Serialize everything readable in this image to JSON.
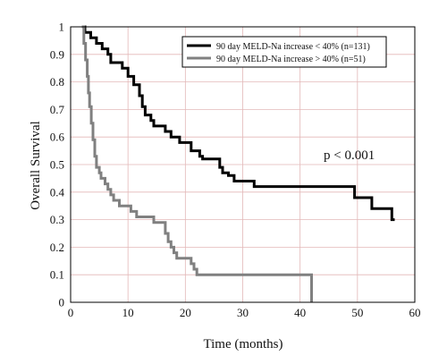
{
  "chart_data": {
    "type": "line",
    "xlabel": "Time (months)",
    "ylabel": "Overall Survival",
    "xlim": [
      0,
      60
    ],
    "ylim": [
      0,
      1
    ],
    "xticks": [
      "0",
      "10",
      "20",
      "30",
      "40",
      "50",
      "60"
    ],
    "yticks": [
      "0",
      "0.1",
      "0.2",
      "0.3",
      "0.4",
      "0.5",
      "0.6",
      "0.7",
      "0.8",
      "0.9",
      "1"
    ],
    "grid": true,
    "legend_position": "top-right",
    "annotation": "p < 0.001",
    "series": [
      {
        "name": "90 day MELD-Na increase < 40% (n=131)",
        "color": "#000000",
        "points": [
          [
            2,
            1.0
          ],
          [
            2.5,
            0.98
          ],
          [
            3.5,
            0.96
          ],
          [
            4.5,
            0.94
          ],
          [
            5.5,
            0.92
          ],
          [
            6.5,
            0.9
          ],
          [
            7,
            0.87
          ],
          [
            9,
            0.85
          ],
          [
            10,
            0.82
          ],
          [
            11,
            0.79
          ],
          [
            12,
            0.75
          ],
          [
            12.5,
            0.71
          ],
          [
            13,
            0.68
          ],
          [
            14,
            0.66
          ],
          [
            14.5,
            0.64
          ],
          [
            16.5,
            0.62
          ],
          [
            17.5,
            0.6
          ],
          [
            19,
            0.58
          ],
          [
            21,
            0.55
          ],
          [
            22.5,
            0.53
          ],
          [
            23,
            0.52
          ],
          [
            26,
            0.49
          ],
          [
            26.5,
            0.47
          ],
          [
            27.5,
            0.46
          ],
          [
            28.5,
            0.44
          ],
          [
            32,
            0.42
          ],
          [
            49.5,
            0.38
          ],
          [
            52.5,
            0.34
          ],
          [
            56,
            0.3
          ]
        ],
        "end_x": 56.5
      },
      {
        "name": "90 day MELD-Na increase > 40% (n=51)",
        "color": "#808080",
        "points": [
          [
            2,
            1.0
          ],
          [
            2.3,
            0.94
          ],
          [
            2.6,
            0.88
          ],
          [
            2.9,
            0.82
          ],
          [
            3.1,
            0.76
          ],
          [
            3.3,
            0.71
          ],
          [
            3.6,
            0.65
          ],
          [
            3.9,
            0.59
          ],
          [
            4.2,
            0.53
          ],
          [
            4.5,
            0.49
          ],
          [
            5,
            0.47
          ],
          [
            5.3,
            0.45
          ],
          [
            6,
            0.43
          ],
          [
            6.5,
            0.41
          ],
          [
            7,
            0.39
          ],
          [
            7.5,
            0.37
          ],
          [
            8.5,
            0.35
          ],
          [
            10.5,
            0.33
          ],
          [
            11.5,
            0.31
          ],
          [
            14.5,
            0.29
          ],
          [
            16.5,
            0.25
          ],
          [
            17,
            0.22
          ],
          [
            17.5,
            0.2
          ],
          [
            18,
            0.18
          ],
          [
            18.5,
            0.16
          ],
          [
            21,
            0.14
          ],
          [
            21.5,
            0.12
          ],
          [
            22,
            0.1
          ],
          [
            24,
            0.1
          ],
          [
            42,
            0.0
          ]
        ],
        "end_x": 42
      }
    ]
  }
}
